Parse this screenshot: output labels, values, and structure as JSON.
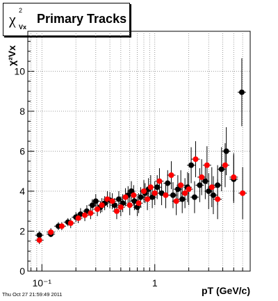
{
  "title": {
    "symbol": "χ",
    "superscript": "2",
    "subscript": "Vx",
    "text": "Primary Tracks"
  },
  "footer": "Thu Oct 27 21:59:49 2011",
  "colors": {
    "series_black": "#000000",
    "series_red": "#ff0000",
    "grid": "#7f7f7f"
  },
  "chart_data": {
    "type": "scatter",
    "xlabel": "pT (GeV/c)",
    "ylabel": "χ²Vx",
    "xscale": "log",
    "xlim": [
      0.075,
      7.0
    ],
    "ylim": [
      0,
      12
    ],
    "grid": true,
    "x_tick_labels": [
      "10⁻¹",
      "1"
    ],
    "y_tick_labels": [
      "0",
      "2",
      "4",
      "6",
      "8",
      "10"
    ],
    "series": [
      {
        "color": "black",
        "points": [
          {
            "x": 0.095,
            "y": 1.8,
            "ey": 0.2
          },
          {
            "x": 0.12,
            "y": 1.85,
            "ey": 0.15
          },
          {
            "x": 0.14,
            "y": 2.25,
            "ey": 0.2
          },
          {
            "x": 0.17,
            "y": 2.45,
            "ey": 0.2
          },
          {
            "x": 0.2,
            "y": 2.7,
            "ey": 0.25
          },
          {
            "x": 0.22,
            "y": 2.85,
            "ey": 0.3
          },
          {
            "x": 0.25,
            "y": 3.0,
            "ey": 0.3
          },
          {
            "x": 0.28,
            "y": 3.3,
            "ey": 0.3
          },
          {
            "x": 0.3,
            "y": 3.5,
            "ey": 0.35
          },
          {
            "x": 0.33,
            "y": 3.2,
            "ey": 0.3
          },
          {
            "x": 0.36,
            "y": 3.4,
            "ey": 0.35
          },
          {
            "x": 0.4,
            "y": 3.55,
            "ey": 0.4
          },
          {
            "x": 0.44,
            "y": 3.3,
            "ey": 0.35
          },
          {
            "x": 0.48,
            "y": 3.6,
            "ey": 0.4
          },
          {
            "x": 0.52,
            "y": 3.4,
            "ey": 0.45
          },
          {
            "x": 0.58,
            "y": 3.8,
            "ey": 0.45
          },
          {
            "x": 0.62,
            "y": 4.0,
            "ey": 0.5
          },
          {
            "x": 0.66,
            "y": 3.5,
            "ey": 0.45
          },
          {
            "x": 0.7,
            "y": 3.2,
            "ey": 0.45
          },
          {
            "x": 0.75,
            "y": 3.7,
            "ey": 0.5
          },
          {
            "x": 0.82,
            "y": 3.9,
            "ey": 0.5
          },
          {
            "x": 0.88,
            "y": 4.1,
            "ey": 0.55
          },
          {
            "x": 0.95,
            "y": 3.7,
            "ey": 0.55
          },
          {
            "x": 1.05,
            "y": 4.2,
            "ey": 0.6
          },
          {
            "x": 1.15,
            "y": 3.9,
            "ey": 0.6
          },
          {
            "x": 1.3,
            "y": 4.4,
            "ey": 0.65
          },
          {
            "x": 1.45,
            "y": 3.8,
            "ey": 0.65
          },
          {
            "x": 1.6,
            "y": 4.1,
            "ey": 0.7
          },
          {
            "x": 1.75,
            "y": 3.6,
            "ey": 0.7
          },
          {
            "x": 1.95,
            "y": 4.2,
            "ey": 0.75
          },
          {
            "x": 2.1,
            "y": 5.3,
            "ey": 0.9
          },
          {
            "x": 2.25,
            "y": 3.7,
            "ey": 0.8
          },
          {
            "x": 2.5,
            "y": 4.3,
            "ey": 0.85
          },
          {
            "x": 2.8,
            "y": 4.5,
            "ey": 0.9
          },
          {
            "x": 3.0,
            "y": 4.0,
            "ey": 0.9
          },
          {
            "x": 3.3,
            "y": 3.8,
            "ey": 0.95
          },
          {
            "x": 3.6,
            "y": 4.3,
            "ey": 1.0
          },
          {
            "x": 3.9,
            "y": 5.1,
            "ey": 1.1
          },
          {
            "x": 4.3,
            "y": 6.0,
            "ey": 1.2
          },
          {
            "x": 5.0,
            "y": 4.6,
            "ey": 1.2
          },
          {
            "x": 5.9,
            "y": 8.95,
            "ey": 1.7
          }
        ]
      },
      {
        "color": "red",
        "points": [
          {
            "x": 0.095,
            "y": 1.55,
            "ey": 0.2
          },
          {
            "x": 0.12,
            "y": 1.95,
            "ey": 0.2
          },
          {
            "x": 0.15,
            "y": 2.25,
            "ey": 0.2
          },
          {
            "x": 0.18,
            "y": 2.4,
            "ey": 0.25
          },
          {
            "x": 0.21,
            "y": 2.65,
            "ey": 0.25
          },
          {
            "x": 0.24,
            "y": 2.8,
            "ey": 0.3
          },
          {
            "x": 0.27,
            "y": 2.9,
            "ey": 0.3
          },
          {
            "x": 0.31,
            "y": 3.1,
            "ey": 0.35
          },
          {
            "x": 0.34,
            "y": 3.3,
            "ey": 0.35
          },
          {
            "x": 0.38,
            "y": 3.6,
            "ey": 0.4
          },
          {
            "x": 0.42,
            "y": 3.5,
            "ey": 0.4
          },
          {
            "x": 0.46,
            "y": 3.0,
            "ey": 0.4
          },
          {
            "x": 0.5,
            "y": 3.2,
            "ey": 0.45
          },
          {
            "x": 0.55,
            "y": 3.7,
            "ey": 0.45
          },
          {
            "x": 0.6,
            "y": 3.3,
            "ey": 0.5
          },
          {
            "x": 0.65,
            "y": 3.8,
            "ey": 0.5
          },
          {
            "x": 0.72,
            "y": 3.4,
            "ey": 0.5
          },
          {
            "x": 0.8,
            "y": 4.0,
            "ey": 0.55
          },
          {
            "x": 0.86,
            "y": 3.6,
            "ey": 0.55
          },
          {
            "x": 0.92,
            "y": 4.2,
            "ey": 0.6
          },
          {
            "x": 1.0,
            "y": 3.9,
            "ey": 0.6
          },
          {
            "x": 1.1,
            "y": 4.5,
            "ey": 0.65
          },
          {
            "x": 1.25,
            "y": 3.8,
            "ey": 0.65
          },
          {
            "x": 1.4,
            "y": 4.8,
            "ey": 0.7
          },
          {
            "x": 1.55,
            "y": 3.5,
            "ey": 0.7
          },
          {
            "x": 1.7,
            "y": 4.3,
            "ey": 0.75
          },
          {
            "x": 1.85,
            "y": 3.9,
            "ey": 0.75
          },
          {
            "x": 2.0,
            "y": 4.1,
            "ey": 0.8
          },
          {
            "x": 2.3,
            "y": 5.6,
            "ey": 0.9
          },
          {
            "x": 2.6,
            "y": 4.7,
            "ey": 0.9
          },
          {
            "x": 2.9,
            "y": 5.3,
            "ey": 0.95
          },
          {
            "x": 3.2,
            "y": 4.2,
            "ey": 1.0
          },
          {
            "x": 3.6,
            "y": 3.6,
            "ey": 1.0
          },
          {
            "x": 4.2,
            "y": 5.3,
            "ey": 1.1
          },
          {
            "x": 5.0,
            "y": 4.7,
            "ey": 1.2
          },
          {
            "x": 6.0,
            "y": 3.9,
            "ey": 1.3
          }
        ]
      }
    ]
  }
}
